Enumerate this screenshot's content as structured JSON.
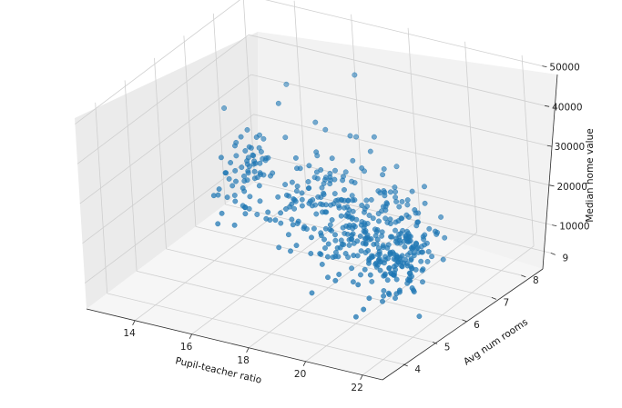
{
  "chart_data": {
    "type": "scatter",
    "projection": "3d",
    "title": "",
    "xlabel": "Pupil-teacher ratio",
    "ylabel": "Avg num rooms",
    "zlabel": "Median home value",
    "xlim": [
      12.3,
      22.7
    ],
    "ylim": [
      3.3,
      9.1
    ],
    "zlim": [
      3500,
      51500
    ],
    "xticks": [
      "14",
      "16",
      "18",
      "20",
      "22"
    ],
    "yticks": [
      "4",
      "5",
      "6",
      "7",
      "8",
      "9"
    ],
    "zticks": [
      "10000",
      "20000",
      "30000",
      "40000",
      "50000"
    ],
    "grid": true,
    "marker_color": "#1f77b4",
    "pane_colors": {
      "left": "#ebebeb",
      "right": "#f2f2f2",
      "floor": "#f6f6f6"
    },
    "point_count": 489,
    "series": [
      {
        "points_xyz_sample": [
          [
            15.3,
            6.58,
            24000
          ],
          [
            17.8,
            6.42,
            21600
          ],
          [
            17.8,
            7.19,
            34700
          ],
          [
            18.7,
            7.0,
            33400
          ],
          [
            18.7,
            7.15,
            36200
          ],
          [
            18.7,
            6.43,
            28700
          ],
          [
            15.2,
            6.01,
            22900
          ],
          [
            15.2,
            6.17,
            27100
          ],
          [
            15.2,
            5.63,
            16500
          ],
          [
            15.2,
            6.0,
            18900
          ],
          [
            15.2,
            6.38,
            15000
          ],
          [
            15.2,
            6.01,
            18900
          ],
          [
            21.0,
            5.89,
            21700
          ],
          [
            21.0,
            5.95,
            20400
          ],
          [
            21.0,
            6.1,
            18200
          ],
          [
            21.0,
            5.83,
            19900
          ],
          [
            21.0,
            5.94,
            23100
          ],
          [
            21.0,
            5.99,
            17500
          ],
          [
            21.0,
            5.46,
            20200
          ],
          [
            21.0,
            5.73,
            18200
          ],
          [
            19.2,
            6.95,
            30100
          ],
          [
            17.4,
            7.82,
            45800
          ],
          [
            14.7,
            8.04,
            37600
          ],
          [
            13.0,
            7.52,
            31600
          ],
          [
            16.6,
            7.18,
            36100
          ],
          [
            14.7,
            6.63,
            23200
          ],
          [
            20.2,
            6.12,
            19400
          ],
          [
            20.2,
            5.36,
            17000
          ],
          [
            20.2,
            5.57,
            15600
          ],
          [
            20.2,
            4.97,
            13800
          ],
          [
            20.2,
            5.39,
            13900
          ],
          [
            20.2,
            5.6,
            15700
          ]
        ]
      }
    ]
  }
}
